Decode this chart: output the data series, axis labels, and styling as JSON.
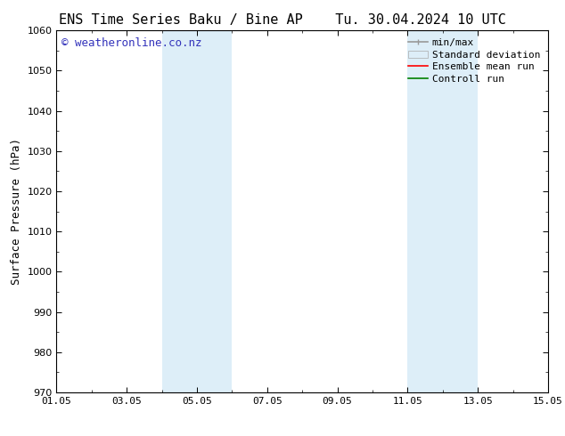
{
  "title_left": "ENS Time Series Baku / Bine AP",
  "title_right": "Tu. 30.04.2024 10 UTC",
  "ylabel": "Surface Pressure (hPa)",
  "ylim": [
    970,
    1060
  ],
  "yticks": [
    970,
    980,
    990,
    1000,
    1010,
    1020,
    1030,
    1040,
    1050,
    1060
  ],
  "x_min": 0,
  "x_max": 14,
  "xtick_labels": [
    "01.05",
    "03.05",
    "05.05",
    "07.05",
    "09.05",
    "11.05",
    "13.05",
    "15.05"
  ],
  "xtick_positions": [
    0,
    2,
    4,
    6,
    8,
    10,
    12,
    14
  ],
  "shaded_regions": [
    {
      "x_start": 3.0,
      "x_end": 5.0,
      "color": "#ddeef8"
    },
    {
      "x_start": 10.0,
      "x_end": 12.0,
      "color": "#ddeef8"
    }
  ],
  "watermark_text": "© weatheronline.co.nz",
  "watermark_color": "#3333bb",
  "watermark_fontsize": 9,
  "legend_entries": [
    {
      "label": "min/max",
      "color": "#aaaaaa"
    },
    {
      "label": "Standard deviation",
      "color": "#ccddee"
    },
    {
      "label": "Ensemble mean run",
      "color": "#ff0000"
    },
    {
      "label": "Controll run",
      "color": "#008000"
    }
  ],
  "background_color": "#ffffff",
  "title_fontsize": 11,
  "axis_label_fontsize": 9,
  "tick_fontsize": 8,
  "legend_fontsize": 8
}
